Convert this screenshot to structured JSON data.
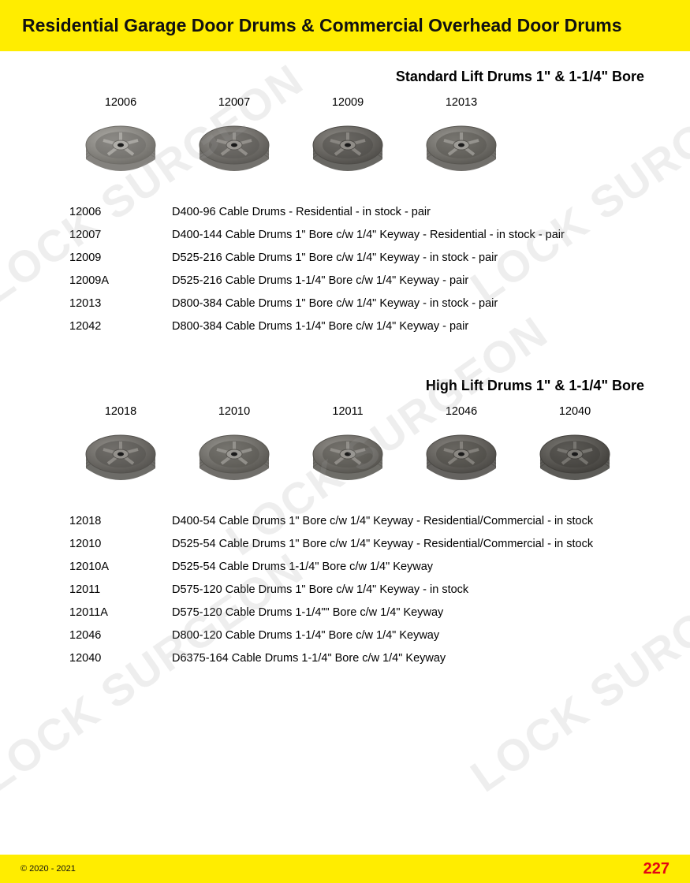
{
  "header": {
    "title": "Residential Garage Door Drums & Commercial Overhead Door Drums"
  },
  "watermark_text": "LOCK SURGEON",
  "section1": {
    "title": "Standard Lift Drums 1\" & 1-1/4\" Bore",
    "drums": [
      {
        "code": "12006",
        "color": "#b0aea9",
        "dark": "#6e6c67"
      },
      {
        "code": "12007",
        "color": "#9a9792",
        "dark": "#5a5854"
      },
      {
        "code": "12009",
        "color": "#8f8c87",
        "dark": "#4e4c48"
      },
      {
        "code": "12013",
        "color": "#9d9b96",
        "dark": "#585651"
      }
    ],
    "specs": [
      {
        "code": "12006",
        "desc": "D400-96 Cable Drums - Residential - in stock - pair"
      },
      {
        "code": "12007",
        "desc": "D400-144 Cable Drums 1\" Bore c/w 1/4\" Keyway - Residential - in stock - pair"
      },
      {
        "code": "12009",
        "desc": "D525-216 Cable Drums 1\" Bore c/w 1/4\" Keyway - in stock - pair"
      },
      {
        "code": "12009A",
        "desc": "D525-216 Cable Drums 1-1/4\" Bore c/w 1/4\" Keyway - pair"
      },
      {
        "code": "12013",
        "desc": "D800-384 Cable Drums 1\" Bore c/w 1/4\" Keyway - in stock - pair"
      },
      {
        "code": "12042",
        "desc": "D800-384 Cable Drums 1-1/4\" Bore c/w 1/4\" Keyway  - pair"
      }
    ]
  },
  "section2": {
    "title": "High Lift Drums 1\" & 1-1/4\" Bore",
    "drums": [
      {
        "code": "12018",
        "color": "#94918c",
        "dark": "#54524e"
      },
      {
        "code": "12010",
        "color": "#9a9893",
        "dark": "#575550"
      },
      {
        "code": "12011",
        "color": "#97948f",
        "dark": "#55534e"
      },
      {
        "code": "12046",
        "color": "#8a8782",
        "dark": "#4a4844"
      },
      {
        "code": "12040",
        "color": "#7d7b76",
        "dark": "#403e3a"
      }
    ],
    "specs": [
      {
        "code": "12018",
        "desc": "D400-54 Cable Drums 1\" Bore c/w 1/4\" Keyway - Residential/Commercial - in stock"
      },
      {
        "code": "12010",
        "desc": "D525-54 Cable Drums 1\" Bore c/w 1/4\" Keyway - Residential/Commercial - in stock"
      },
      {
        "code": "12010A",
        "desc": "D525-54 Cable Drums 1-1/4\" Bore c/w 1/4\" Keyway"
      },
      {
        "code": "12011",
        "desc": "D575-120 Cable Drums 1\" Bore c/w 1/4\" Keyway - in stock"
      },
      {
        "code": "12011A",
        "desc": "D575-120 Cable Drums 1-1/4\"\" Bore c/w 1/4\" Keyway"
      },
      {
        "code": "12046",
        "desc": "D800-120 Cable Drums 1-1/4\" Bore c/w 1/4\" Keyway"
      },
      {
        "code": "12040",
        "desc": "D6375-164 Cable Drums 1-1/4\" Bore c/w 1/4\" Keyway"
      }
    ]
  },
  "footer": {
    "copyright": "© 2020 - 2021",
    "page_number": "227"
  },
  "colors": {
    "yellow_band": "#ffed00",
    "page_number_red": "#e30613",
    "text": "#111111",
    "watermark": "rgba(160,160,160,0.18)"
  }
}
